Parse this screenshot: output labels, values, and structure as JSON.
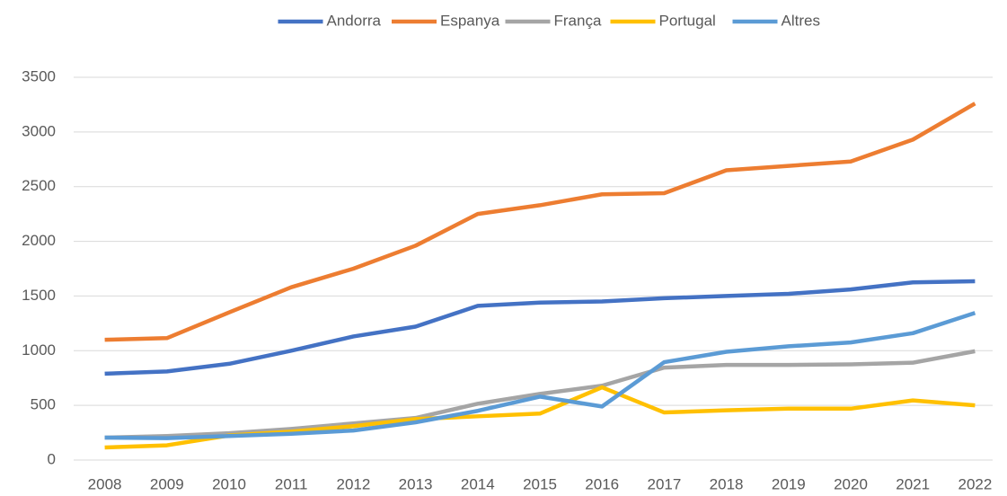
{
  "chart_data": {
    "type": "line",
    "x": [
      "2008",
      "2009",
      "2010",
      "2011",
      "2012",
      "2013",
      "2014",
      "2015",
      "2016",
      "2017",
      "2018",
      "2019",
      "2020",
      "2021",
      "2022"
    ],
    "series": [
      {
        "name": "Andorra",
        "color": "#4472c4",
        "values": [
          790,
          810,
          880,
          1000,
          1130,
          1220,
          1410,
          1440,
          1450,
          1480,
          1500,
          1520,
          1560,
          1625,
          1635
        ]
      },
      {
        "name": "Espanya",
        "color": "#ed7d31",
        "values": [
          1100,
          1115,
          1350,
          1580,
          1750,
          1960,
          2250,
          2330,
          2430,
          2440,
          2650,
          2690,
          2730,
          2930,
          3260
        ]
      },
      {
        "name": "França",
        "color": "#a5a5a5",
        "values": [
          205,
          220,
          245,
          285,
          335,
          385,
          515,
          605,
          680,
          845,
          870,
          870,
          875,
          890,
          995
        ]
      },
      {
        "name": "Portugal",
        "color": "#ffc000",
        "values": [
          115,
          135,
          225,
          260,
          310,
          375,
          400,
          425,
          665,
          435,
          455,
          470,
          470,
          545,
          500
        ]
      },
      {
        "name": "Altres",
        "color": "#5b9bd5",
        "values": [
          205,
          200,
          220,
          240,
          270,
          345,
          450,
          580,
          490,
          895,
          990,
          1040,
          1075,
          1160,
          1345
        ]
      }
    ],
    "ylim": [
      0,
      3500
    ],
    "yticks": [
      0,
      500,
      1000,
      1500,
      2000,
      2500,
      3000,
      3500
    ],
    "grid": true,
    "legend": "top"
  }
}
